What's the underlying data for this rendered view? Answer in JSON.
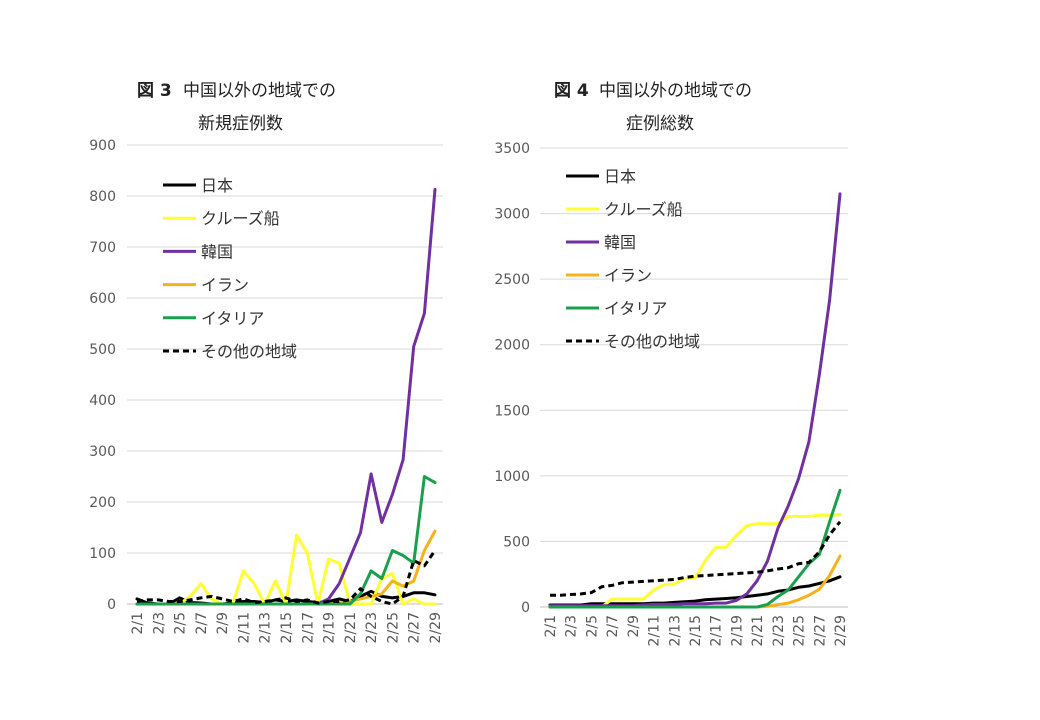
{
  "chart_data": [
    {
      "type": "line",
      "title_prefix": "図 3",
      "title_line1": "中国以外の地域での",
      "title_line2": "新規症例数",
      "ylim": [
        0,
        900
      ],
      "yticks": [
        "0",
        "100",
        "200",
        "300",
        "400",
        "500",
        "600",
        "700",
        "800",
        "900"
      ],
      "xtick_labels": [
        "2/1",
        "2/3",
        "2/5",
        "2/7",
        "2/9",
        "2/11",
        "2/13",
        "2/15",
        "2/17",
        "2/19",
        "2/21",
        "2/23",
        "2/25",
        "2/27",
        "2/29"
      ],
      "x": [
        "2/1",
        "2/2",
        "2/3",
        "2/4",
        "2/5",
        "2/6",
        "2/7",
        "2/8",
        "2/9",
        "2/10",
        "2/11",
        "2/12",
        "2/13",
        "2/14",
        "2/15",
        "2/16",
        "2/17",
        "2/18",
        "2/19",
        "2/20",
        "2/21",
        "2/22",
        "2/23",
        "2/24",
        "2/25",
        "2/26",
        "2/27",
        "2/28",
        "2/29"
      ],
      "series": [
        {
          "name": "日本",
          "color": "#000000",
          "dash": false,
          "values": [
            10,
            2,
            0,
            0,
            12,
            3,
            2,
            0,
            0,
            2,
            5,
            5,
            3,
            8,
            5,
            8,
            5,
            3,
            5,
            10,
            5,
            15,
            25,
            15,
            12,
            15,
            22,
            22,
            18
          ]
        },
        {
          "name": "クルーズ船",
          "color": "#ffff33",
          "dash": false,
          "values": [
            0,
            0,
            0,
            0,
            0,
            15,
            40,
            10,
            0,
            0,
            65,
            40,
            0,
            45,
            0,
            135,
            100,
            0,
            88,
            80,
            0,
            0,
            0,
            50,
            60,
            0,
            10,
            0,
            0
          ]
        },
        {
          "name": "韓国",
          "color": "#7030a0",
          "dash": false,
          "values": [
            0,
            0,
            0,
            0,
            0,
            0,
            0,
            0,
            0,
            0,
            0,
            0,
            0,
            0,
            0,
            0,
            0,
            0,
            10,
            40,
            90,
            140,
            255,
            160,
            215,
            283,
            505,
            570,
            813
          ]
        },
        {
          "name": "イラン",
          "color": "#f5b21a",
          "dash": false,
          "values": [
            0,
            0,
            0,
            0,
            0,
            0,
            0,
            0,
            0,
            0,
            0,
            0,
            0,
            0,
            0,
            0,
            0,
            0,
            0,
            2,
            5,
            10,
            15,
            20,
            45,
            35,
            45,
            105,
            143
          ]
        },
        {
          "name": "イタリア",
          "color": "#1aa04c",
          "dash": false,
          "values": [
            0,
            0,
            0,
            0,
            0,
            0,
            0,
            0,
            0,
            0,
            0,
            0,
            0,
            0,
            0,
            0,
            0,
            0,
            0,
            0,
            0,
            20,
            65,
            50,
            105,
            95,
            80,
            250,
            238
          ]
        },
        {
          "name": "その他の地域",
          "color": "#000000",
          "dash": true,
          "values": [
            5,
            8,
            8,
            5,
            5,
            8,
            12,
            15,
            10,
            5,
            10,
            3,
            5,
            8,
            12,
            5,
            8,
            2,
            5,
            5,
            8,
            30,
            15,
            5,
            0,
            15,
            85,
            75,
            105
          ]
        }
      ]
    },
    {
      "type": "line",
      "title_prefix": "図 4",
      "title_line1": "中国以外の地域での",
      "title_line2": "症例総数",
      "ylim": [
        0,
        3500
      ],
      "yticks": [
        "0",
        "500",
        "1000",
        "1500",
        "2000",
        "2500",
        "3000",
        "3500"
      ],
      "xtick_labels": [
        "2/1",
        "2/3",
        "2/5",
        "2/7",
        "2/9",
        "2/11",
        "2/13",
        "2/15",
        "2/17",
        "2/19",
        "2/21",
        "2/23",
        "2/25",
        "2/27",
        "2/29"
      ],
      "x": [
        "2/1",
        "2/2",
        "2/3",
        "2/4",
        "2/5",
        "2/6",
        "2/7",
        "2/8",
        "2/9",
        "2/10",
        "2/11",
        "2/12",
        "2/13",
        "2/14",
        "2/15",
        "2/16",
        "2/17",
        "2/18",
        "2/19",
        "2/20",
        "2/21",
        "2/22",
        "2/23",
        "2/24",
        "2/25",
        "2/26",
        "2/27",
        "2/28",
        "2/29"
      ],
      "series": [
        {
          "name": "日本",
          "color": "#000000",
          "dash": false,
          "values": [
            15,
            15,
            15,
            15,
            25,
            25,
            25,
            25,
            25,
            25,
            30,
            30,
            35,
            40,
            45,
            55,
            60,
            65,
            70,
            80,
            90,
            100,
            120,
            130,
            150,
            160,
            180,
            200,
            230
          ]
        },
        {
          "name": "クルーズ船",
          "color": "#ffff33",
          "dash": false,
          "values": [
            0,
            0,
            0,
            0,
            0,
            0,
            60,
            60,
            60,
            60,
            130,
            170,
            175,
            215,
            220,
            355,
            455,
            455,
            545,
            620,
            635,
            635,
            635,
            690,
            690,
            690,
            700,
            700,
            705
          ]
        },
        {
          "name": "韓国",
          "color": "#7030a0",
          "dash": false,
          "values": [
            10,
            10,
            10,
            10,
            10,
            10,
            10,
            10,
            10,
            15,
            20,
            20,
            20,
            25,
            25,
            25,
            30,
            30,
            50,
            100,
            200,
            350,
            600,
            770,
            980,
            1260,
            1770,
            2340,
            3150
          ]
        },
        {
          "name": "イラン",
          "color": "#f5b21a",
          "dash": false,
          "values": [
            0,
            0,
            0,
            0,
            0,
            0,
            0,
            0,
            0,
            0,
            0,
            0,
            0,
            0,
            0,
            0,
            0,
            0,
            0,
            0,
            0,
            5,
            18,
            30,
            55,
            90,
            135,
            240,
            390
          ]
        },
        {
          "name": "イタリア",
          "color": "#1aa04c",
          "dash": false,
          "values": [
            0,
            0,
            0,
            0,
            0,
            0,
            0,
            0,
            0,
            0,
            0,
            0,
            0,
            0,
            0,
            0,
            0,
            0,
            0,
            0,
            0,
            20,
            80,
            130,
            230,
            330,
            400,
            650,
            890
          ]
        },
        {
          "name": "その他の地域",
          "color": "#000000",
          "dash": true,
          "values": [
            90,
            90,
            95,
            100,
            110,
            155,
            165,
            185,
            190,
            195,
            200,
            205,
            210,
            225,
            235,
            240,
            245,
            250,
            255,
            260,
            265,
            275,
            290,
            300,
            330,
            340,
            420,
            550,
            650
          ]
        }
      ]
    }
  ]
}
